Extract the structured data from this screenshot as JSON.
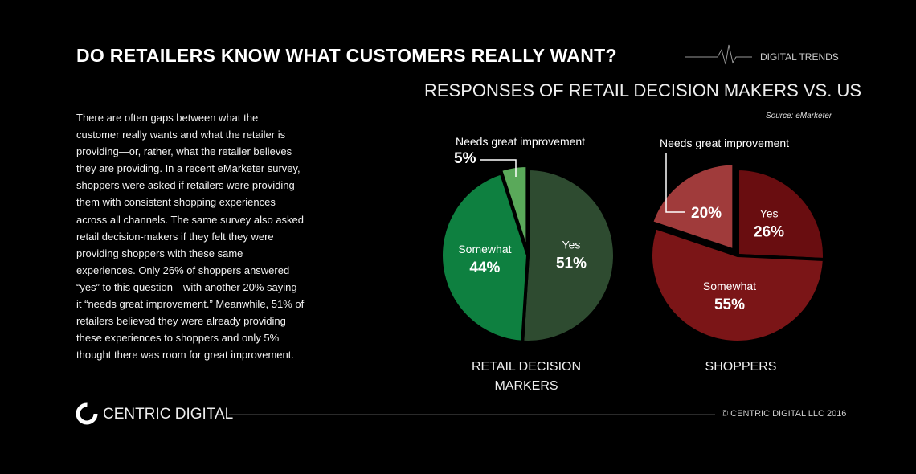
{
  "header": {
    "title": "DO RETAILERS KNOW WHAT CUSTOMERS REALLY WANT?",
    "tag": "DIGITAL TRENDS"
  },
  "subtitle": "RESPONSES OF RETAIL DECISION MAKERS VS. US",
  "source": "Source: eMarketer",
  "body": {
    "lines": [
      "There are often gaps between what the",
      "customer really wants and what the retailer is",
      "providing—or, rather, what the retailer believes",
      "they are providing. In a recent eMarketer survey,",
      "shoppers were asked if retailers were providing",
      "them with consistent shopping experiences",
      "across all channels. The same survey also asked",
      "retail decision-makers if they felt they were",
      "providing shoppers with these same",
      "experiences. Only 26% of shoppers answered",
      "“yes” to this question—with another 20% saying",
      "it “needs great improvement.” Meanwhile, 51% of",
      "retailers believed they were already providing",
      "these experiences to shoppers and only 5%",
      "thought there was room for great improvement."
    ]
  },
  "footer": {
    "brand": "CENTRIC DIGITAL",
    "copyright": "© CENTRIC DIGITAL LLC 2016"
  },
  "chart_data": [
    {
      "type": "pie",
      "title": "RETAIL DECISION MARKERS",
      "categories": [
        "Yes",
        "Somewhat",
        "Needs great improvement"
      ],
      "values": [
        51,
        44,
        5
      ],
      "value_labels": [
        "51%",
        "44%",
        "5%"
      ],
      "colors": [
        "#2e4b30",
        "#0e8040",
        "#5aa95a"
      ]
    },
    {
      "type": "pie",
      "title": "SHOPPERS",
      "categories": [
        "Yes",
        "Somewhat",
        "Needs great improvement"
      ],
      "values": [
        26,
        55,
        20
      ],
      "value_labels": [
        "26%",
        "55%",
        "20%"
      ],
      "colors": [
        "#690d10",
        "#7b1517",
        "#a03b3b"
      ]
    }
  ]
}
